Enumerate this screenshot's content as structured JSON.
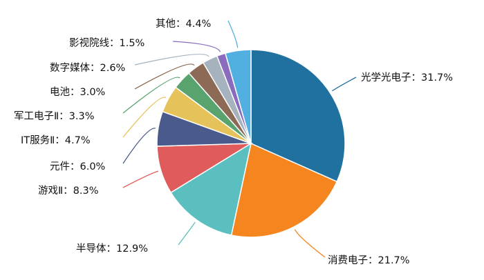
{
  "chart_data": {
    "type": "pie",
    "title": "",
    "start": "top",
    "direction": "clockwise",
    "slices": [
      {
        "label": "光学光电子",
        "value": 31.7,
        "display": "光学光电子：31.7%",
        "color": "#2171a0"
      },
      {
        "label": "消费电子",
        "value": 21.7,
        "display": "消费电子：21.7%",
        "color": "#f5861f"
      },
      {
        "label": "半导体",
        "value": 12.9,
        "display": "半导体：12.9%",
        "color": "#5cbfbf"
      },
      {
        "label": "游戏Ⅱ",
        "value": 8.3,
        "display": "游戏Ⅱ：8.3%",
        "color": "#e05b5b"
      },
      {
        "label": "元件",
        "value": 6.0,
        "display": "元件：6.0%",
        "color": "#4a5a8c"
      },
      {
        "label": "IT服务Ⅱ",
        "value": 4.7,
        "display": "IT服务Ⅱ：4.7%",
        "color": "#e6c25a"
      },
      {
        "label": "军工电子Ⅱ",
        "value": 3.3,
        "display": "军工电子Ⅱ：3.3%",
        "color": "#59a36e"
      },
      {
        "label": "电池",
        "value": 3.0,
        "display": "电池：3.0%",
        "color": "#8c6a55"
      },
      {
        "label": "数字媒体",
        "value": 2.6,
        "display": "数字媒体：2.6%",
        "color": "#a6b3bf"
      },
      {
        "label": "影视院线",
        "value": 1.5,
        "display": "影视院线：1.5%",
        "color": "#8a6cbf"
      },
      {
        "label": "其他",
        "value": 4.4,
        "display": "其他：4.4%",
        "color": "#52b0e0"
      }
    ]
  }
}
